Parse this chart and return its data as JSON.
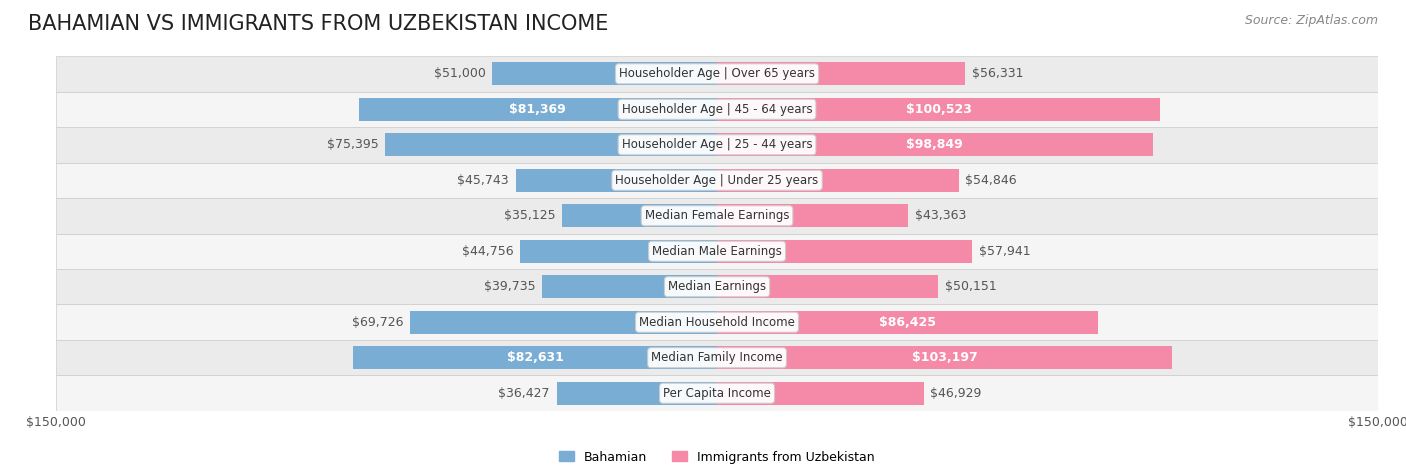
{
  "title": "BAHAMIAN VS IMMIGRANTS FROM UZBEKISTAN INCOME",
  "source": "Source: ZipAtlas.com",
  "categories": [
    "Per Capita Income",
    "Median Family Income",
    "Median Household Income",
    "Median Earnings",
    "Median Male Earnings",
    "Median Female Earnings",
    "Householder Age | Under 25 years",
    "Householder Age | 25 - 44 years",
    "Householder Age | 45 - 64 years",
    "Householder Age | Over 65 years"
  ],
  "bahamian": [
    36427,
    82631,
    69726,
    39735,
    44756,
    35125,
    45743,
    75395,
    81369,
    51000
  ],
  "uzbekistan": [
    46929,
    103197,
    86425,
    50151,
    57941,
    43363,
    54846,
    98849,
    100523,
    56331
  ],
  "max_val": 150000,
  "color_bahamian": "#7aadd4",
  "color_uzbekistan": "#f589a8",
  "color_bahamian_dark": "#5b8fbf",
  "color_uzbekistan_dark": "#e8608a",
  "background_row_light": "#f0f0f0",
  "background_row_white": "#ffffff",
  "label_color_dark": "#555555",
  "label_color_white": "#ffffff",
  "title_fontsize": 15,
  "source_fontsize": 9,
  "bar_label_fontsize": 9,
  "category_fontsize": 8.5,
  "legend_fontsize": 9,
  "axis_label_fontsize": 9,
  "threshold_white_label": 80000
}
